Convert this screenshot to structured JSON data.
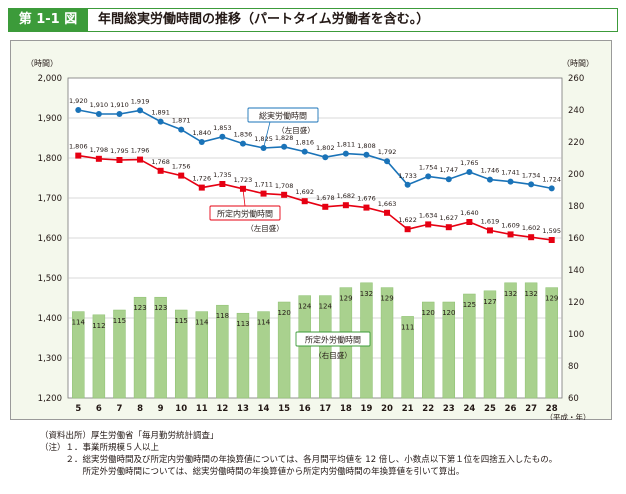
{
  "figure": {
    "number": "第 1-1 図",
    "title": "年間総実労働時間の推移（パートタイム労働者を含む。）"
  },
  "colors": {
    "green": "#3c9b3a",
    "total_line": "#1a73b8",
    "scheduled_line": "#e60012",
    "bar_fill": "#a9d18e",
    "bar_stroke": "#8cbf6f"
  },
  "chart_data": {
    "type": "bar+line",
    "x": [
      "5",
      "6",
      "7",
      "8",
      "9",
      "10",
      "11",
      "12",
      "13",
      "14",
      "15",
      "16",
      "17",
      "18",
      "19",
      "20",
      "21",
      "22",
      "23",
      "24",
      "25",
      "26",
      "27",
      "28"
    ],
    "xunit": "（平成・年）",
    "left_axis": {
      "unit": "（時間）",
      "ylim": [
        1200,
        2000
      ],
      "ticks": [
        "1,200",
        "1,300",
        "1,400",
        "1,500",
        "1,600",
        "1,700",
        "1,800",
        "1,900",
        "2,000"
      ]
    },
    "right_axis": {
      "unit": "（時間）",
      "ylim": [
        60,
        260
      ],
      "ticks": [
        "60",
        "80",
        "100",
        "120",
        "140",
        "160",
        "180",
        "200",
        "220",
        "240",
        "260"
      ]
    },
    "series": [
      {
        "name": "総実労働時間",
        "axis_note": "（左目盛）",
        "type": "line",
        "axis": "left",
        "values": [
          1920,
          1910,
          1910,
          1919,
          1891,
          1871,
          1840,
          1853,
          1836,
          1825,
          1828,
          1816,
          1802,
          1811,
          1808,
          1792,
          1733,
          1754,
          1747,
          1765,
          1746,
          1741,
          1734,
          1724
        ],
        "labels": [
          "1,920",
          "1,910",
          "1,910",
          "1,919",
          "1,891",
          "1,871",
          "1,840",
          "1,853",
          "1,836",
          "1,825",
          "1,828",
          "1,816",
          "1,802",
          "1,811",
          "1,808",
          "1,792",
          "1,733",
          "1,754",
          "1,747",
          "1,765",
          "1,746",
          "1,741",
          "1,734",
          "1,724"
        ]
      },
      {
        "name": "所定内労働時間",
        "axis_note": "（左目盛）",
        "type": "line",
        "axis": "left",
        "values": [
          1806,
          1798,
          1795,
          1796,
          1768,
          1756,
          1726,
          1735,
          1723,
          1711,
          1708,
          1692,
          1678,
          1682,
          1676,
          1663,
          1622,
          1634,
          1627,
          1640,
          1619,
          1609,
          1602,
          1595
        ],
        "labels": [
          "1,806",
          "1,798",
          "1,795",
          "1,796",
          "1,768",
          "1,756",
          "1,726",
          "1,735",
          "1,723",
          "1,711",
          "1,708",
          "1,692",
          "1,678",
          "1,682",
          "1,676",
          "1,663",
          "1,622",
          "1,634",
          "1,627",
          "1,640",
          "1,619",
          "1,609",
          "1,602",
          "1,595"
        ]
      },
      {
        "name": "所定外労働時間",
        "axis_note": "（右目盛）",
        "type": "bar",
        "axis": "right",
        "values": [
          114,
          112,
          115,
          123,
          123,
          115,
          114,
          118,
          113,
          114,
          120,
          124,
          124,
          129,
          132,
          129,
          111,
          120,
          120,
          125,
          127,
          132,
          132,
          129
        ],
        "labels": [
          "114",
          "112",
          "115",
          "123",
          "123",
          "115",
          "114",
          "118",
          "113",
          "114",
          "120",
          "124",
          "124",
          "129",
          "132",
          "129",
          "111",
          "120",
          "120",
          "125",
          "127",
          "132",
          "132",
          "129"
        ]
      }
    ]
  },
  "notes": [
    "（資料出所）厚生労働省「毎月勤労統計調査」",
    "（注）１．事業所規模５人以上",
    "　　　２．総実労働時間及び所定内労働時間の年換算値については、各月間平均値を 12 倍し、小数点以下第１位を四捨五入したもの。",
    "　　　　　所定外労働時間については、総実労働時間の年換算値から所定内労働時間の年換算値を引いて算出。"
  ]
}
